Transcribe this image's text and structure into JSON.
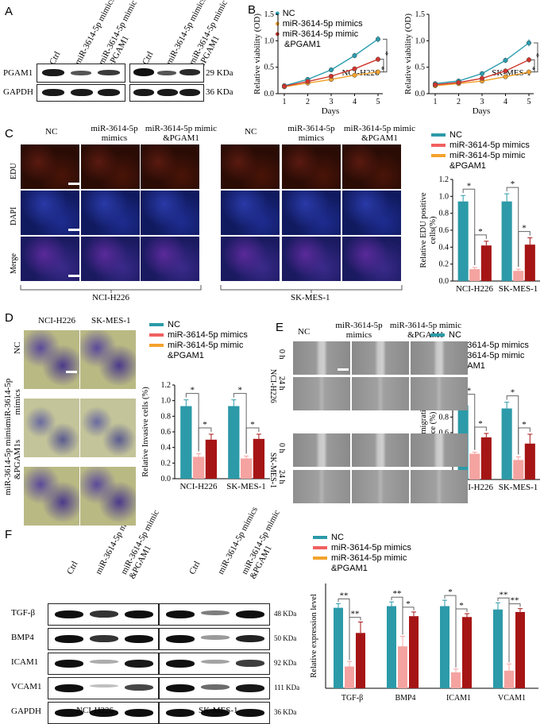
{
  "panel_labels": {
    "A": "A",
    "B": "B",
    "C": "C",
    "D": "D",
    "E": "E",
    "F": "F"
  },
  "colors": {
    "nc": "#2A9DAE",
    "mimics": "#F06060",
    "mimic_pgam1": "#F4A32C",
    "bar_nc": "#2C9AA8",
    "bar_mimics": "#F4A3A0",
    "bar_pgam1": "#A61515"
  },
  "panelA": {
    "col_labels": [
      "Ctrl",
      "miR-3614-5p mimics",
      "miR-3614-5p mimic &PGAM1",
      "Ctrl",
      "miR-3614-5p mimics",
      "miR-3614-5p mimic &PGAM1"
    ],
    "row_labels": [
      "PGAM1",
      "GAPDH"
    ],
    "kda": [
      "29 KDa",
      "36 KDa"
    ]
  },
  "panelB": {
    "legend": [
      "NC",
      "miR-3614-5p mimics",
      "miR-3614-5p mimic",
      "&PGAM1"
    ],
    "ylabel": "Relative viability (OD)",
    "xlabel": "Days",
    "yticks": [
      "0.0",
      "0.5",
      "1.0",
      "1.5"
    ],
    "xticks": [
      "1",
      "2",
      "3",
      "4",
      "5"
    ],
    "star": "*",
    "cells": [
      "NCI-H226",
      "SK-MES-1"
    ]
  },
  "panelC": {
    "headers_left": [
      "NC",
      "miR-3614-5p",
      "mimics",
      "miR-3614-5p mimic",
      "&PGAM1"
    ],
    "headers_right": [
      "NC",
      "miR-3614-5p",
      "mimics",
      "miR-3614-5p mimic",
      "&PGAM1"
    ],
    "row_labels": [
      "EDU",
      "DAPI",
      "Merge"
    ],
    "cells": [
      "NCI-H226",
      "SK-MES-1"
    ]
  },
  "legend_bars": [
    "NC",
    "miR-3614-5p mimics",
    "miR-3614-5p mimic",
    "&PGAM1"
  ],
  "panelD": {
    "cols": [
      "NCI-H226",
      "SK-MES-1"
    ],
    "rows": [
      "NC",
      "miR-3614-5p",
      "mimics",
      "miR-3614-5p mimic",
      "&PGAM1s"
    ]
  },
  "panelE": {
    "headers": [
      "NC",
      "miR-3614-5p",
      "mimics",
      "miR-3614-5p mimic",
      "&PGAM1"
    ],
    "times": [
      "0 h",
      "24 h"
    ],
    "cells": [
      "NCI-H226",
      "SK-MES-1"
    ]
  },
  "panelF": {
    "col_labels": [
      "Ctrl",
      "miR-3614-5p mimics",
      "miR-3614-5p mimic &PGAM1",
      "Ctrl",
      "miR-3614-5p mimics",
      "miR-3614-5p mimic &PGAM1"
    ],
    "row_labels": [
      "TGF-β",
      "BMP4",
      "ICAM1",
      "VCAM1",
      "GAPDH"
    ],
    "kda": [
      "48 KDa",
      "50 KDa",
      "92 KDa",
      "111 KDa",
      "36 KDa"
    ],
    "cells": [
      "NCI-H226",
      "SK-MES-1"
    ]
  },
  "chart_data": [
    {
      "type": "line",
      "id": "B1",
      "title": "NCI-H226",
      "xlabel": "Days",
      "ylabel": "Relative viability (OD)",
      "x": [
        1,
        2,
        3,
        4,
        5
      ],
      "ylim": [
        0,
        1.5
      ],
      "series": [
        {
          "name": "NC",
          "values": [
            0.15,
            0.27,
            0.45,
            0.72,
            1.03
          ],
          "err": [
            0.03,
            0.03,
            0.04,
            0.05,
            0.06
          ]
        },
        {
          "name": "miR-3614-5p mimics",
          "values": [
            0.13,
            0.2,
            0.27,
            0.35,
            0.41
          ],
          "err": [
            0.02,
            0.02,
            0.02,
            0.03,
            0.03
          ]
        },
        {
          "name": "miR-3614-5p mimic &PGAM1",
          "values": [
            0.14,
            0.23,
            0.33,
            0.47,
            0.65
          ],
          "err": [
            0.02,
            0.03,
            0.03,
            0.04,
            0.05
          ]
        }
      ],
      "significance": [
        "*",
        "*"
      ]
    },
    {
      "type": "line",
      "id": "B2",
      "title": "SK-MES-1",
      "xlabel": "Days",
      "ylabel": "Relative viability (OD)",
      "x": [
        1,
        2,
        3,
        4,
        5
      ],
      "ylim": [
        0,
        1.5
      ],
      "series": [
        {
          "name": "NC",
          "values": [
            0.19,
            0.24,
            0.38,
            0.63,
            0.96
          ],
          "err": [
            0.03,
            0.03,
            0.04,
            0.05,
            0.07
          ]
        },
        {
          "name": "miR-3614-5p mimics",
          "values": [
            0.15,
            0.19,
            0.24,
            0.32,
            0.41
          ],
          "err": [
            0.02,
            0.02,
            0.02,
            0.02,
            0.03
          ]
        },
        {
          "name": "miR-3614-5p mimic &PGAM1",
          "values": [
            0.17,
            0.21,
            0.29,
            0.43,
            0.64
          ],
          "err": [
            0.02,
            0.02,
            0.03,
            0.04,
            0.05
          ]
        }
      ],
      "significance": [
        "*",
        "*"
      ]
    },
    {
      "type": "bar",
      "id": "C",
      "ylabel": "Relative EDU positive cells(%)",
      "categories": [
        "NCI-H226",
        "SK-MES-1"
      ],
      "ylim": [
        0,
        1.2
      ],
      "yticks": [
        "0.0",
        "0.2",
        "0.4",
        "0.6",
        "0.8",
        "1.0",
        "1.2"
      ],
      "series": [
        {
          "name": "NC",
          "values": [
            0.94,
            0.94
          ],
          "err": [
            0.07,
            0.09
          ]
        },
        {
          "name": "miR-3614-5p mimics",
          "values": [
            0.14,
            0.12
          ],
          "err": [
            0.02,
            0.02
          ]
        },
        {
          "name": "miR-3614-5p mimic &PGAM1",
          "values": [
            0.42,
            0.43
          ],
          "err": [
            0.05,
            0.08
          ]
        }
      ],
      "significance": [
        "*",
        "*",
        "*",
        "*"
      ]
    },
    {
      "type": "bar",
      "id": "D",
      "ylabel": "Relative Invasive cells (%)",
      "categories": [
        "NCI-H226",
        "SK-MES-1"
      ],
      "ylim": [
        0,
        1.2
      ],
      "yticks": [
        "0.0",
        "0.2",
        "0.4",
        "0.6",
        "0.8",
        "1.0",
        "1.2"
      ],
      "series": [
        {
          "name": "NC",
          "values": [
            0.93,
            0.93
          ],
          "err": [
            0.08,
            0.08
          ]
        },
        {
          "name": "miR-3614-5p mimics",
          "values": [
            0.28,
            0.26
          ],
          "err": [
            0.04,
            0.03
          ]
        },
        {
          "name": "miR-3614-5p mimic &PGAM1",
          "values": [
            0.5,
            0.51
          ],
          "err": [
            0.07,
            0.06
          ]
        }
      ],
      "significance": [
        "*",
        "*",
        "*",
        "*"
      ]
    },
    {
      "type": "bar",
      "id": "E",
      "ylabel": "Relative migration distance (%)",
      "categories": [
        "NCI-H226",
        "SK-MES-1"
      ],
      "ylim": [
        0,
        1.2
      ],
      "yticks": [
        "0.0",
        "0.2",
        "0.4",
        "0.6",
        "0.8",
        "1.0",
        "1.2"
      ],
      "series": [
        {
          "name": "NC",
          "values": [
            0.95,
            0.91
          ],
          "err": [
            0.06,
            0.08
          ]
        },
        {
          "name": "miR-3614-5p mimics",
          "values": [
            0.33,
            0.25
          ],
          "err": [
            0.02,
            0.04
          ]
        },
        {
          "name": "miR-3614-5p mimic &PGAM1",
          "values": [
            0.54,
            0.46
          ],
          "err": [
            0.05,
            0.12
          ]
        }
      ],
      "significance": [
        "*",
        "*",
        "*",
        "*"
      ]
    },
    {
      "type": "bar",
      "id": "F",
      "ylabel": "Relative expression level",
      "categories": [
        "TGF-β",
        "BMP4",
        "ICAM1",
        "VCAM1"
      ],
      "ylim": [
        0,
        1.25
      ],
      "series": [
        {
          "name": "NC",
          "values": [
            0.96,
            0.98,
            0.98,
            0.94
          ],
          "err": [
            0.05,
            0.05,
            0.07,
            0.08
          ]
        },
        {
          "name": "miR-3614-5p mimics",
          "values": [
            0.26,
            0.5,
            0.19,
            0.21
          ],
          "err": [
            0.06,
            0.12,
            0.04,
            0.08
          ]
        },
        {
          "name": "miR-3614-5p mimic &PGAM1",
          "values": [
            0.66,
            0.86,
            0.85,
            0.91
          ],
          "err": [
            0.13,
            0.05,
            0.04,
            0.04
          ]
        }
      ],
      "significance": [
        "**",
        "**",
        "**",
        "*",
        "*",
        "*",
        "**",
        "**"
      ]
    }
  ]
}
